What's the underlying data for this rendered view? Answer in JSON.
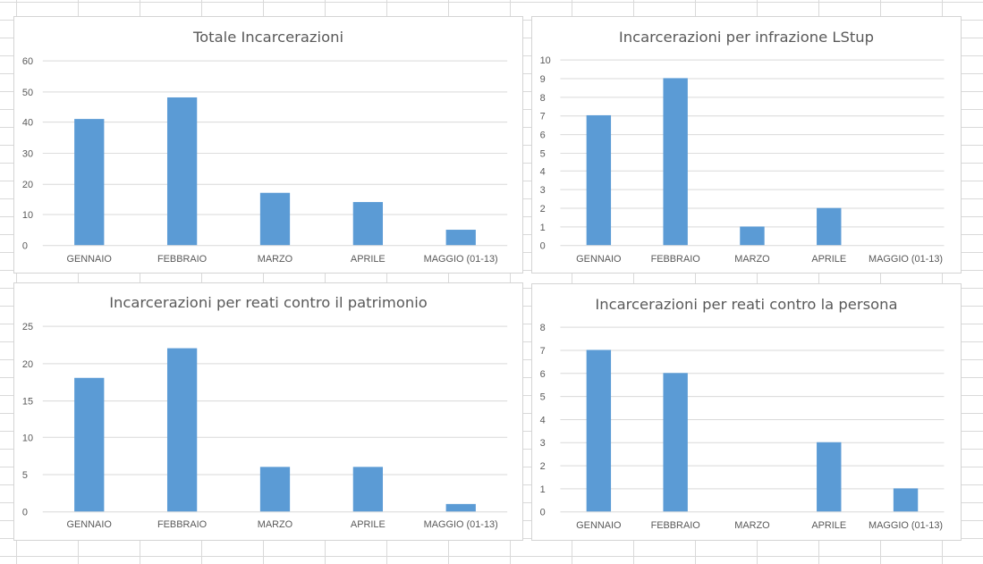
{
  "chart_data": [
    {
      "type": "bar",
      "title": "Totale Incarcerazioni",
      "categories": [
        "GENNAIO",
        "FEBBRAIO",
        "MARZO",
        "APRILE",
        "MAGGIO (01-13)"
      ],
      "values": [
        41,
        48,
        17,
        14,
        5
      ],
      "ylim": [
        0,
        60
      ],
      "yticks": [
        0,
        10,
        20,
        30,
        40,
        50,
        60
      ],
      "xlabel": "",
      "ylabel": "",
      "grid": true,
      "color": "#5b9bd5"
    },
    {
      "type": "bar",
      "title": "Incarcerazioni per infrazione LStup",
      "categories": [
        "GENNAIO",
        "FEBBRAIO",
        "MARZO",
        "APRILE",
        "MAGGIO (01-13)"
      ],
      "values": [
        7,
        9,
        1,
        2,
        0
      ],
      "ylim": [
        0,
        10
      ],
      "yticks": [
        0,
        1,
        2,
        3,
        4,
        5,
        6,
        7,
        8,
        9,
        10
      ],
      "xlabel": "",
      "ylabel": "",
      "grid": true,
      "color": "#5b9bd5"
    },
    {
      "type": "bar",
      "title": "Incarcerazioni per reati contro il patrimonio",
      "categories": [
        "GENNAIO",
        "FEBBRAIO",
        "MARZO",
        "APRILE",
        "MAGGIO (01-13)"
      ],
      "values": [
        18,
        22,
        6,
        6,
        1
      ],
      "ylim": [
        0,
        25
      ],
      "yticks": [
        0,
        5,
        10,
        15,
        20,
        25
      ],
      "xlabel": "",
      "ylabel": "",
      "grid": true,
      "color": "#5b9bd5"
    },
    {
      "type": "bar",
      "title": "Incarcerazioni per reati contro la persona",
      "categories": [
        "GENNAIO",
        "FEBBRAIO",
        "MARZO",
        "APRILE",
        "MAGGIO (01-13)"
      ],
      "values": [
        7,
        6,
        0,
        3,
        1
      ],
      "ylim": [
        0,
        8
      ],
      "yticks": [
        0,
        1,
        2,
        3,
        4,
        5,
        6,
        7,
        8
      ],
      "xlabel": "",
      "ylabel": "",
      "grid": true,
      "color": "#5b9bd5"
    }
  ]
}
